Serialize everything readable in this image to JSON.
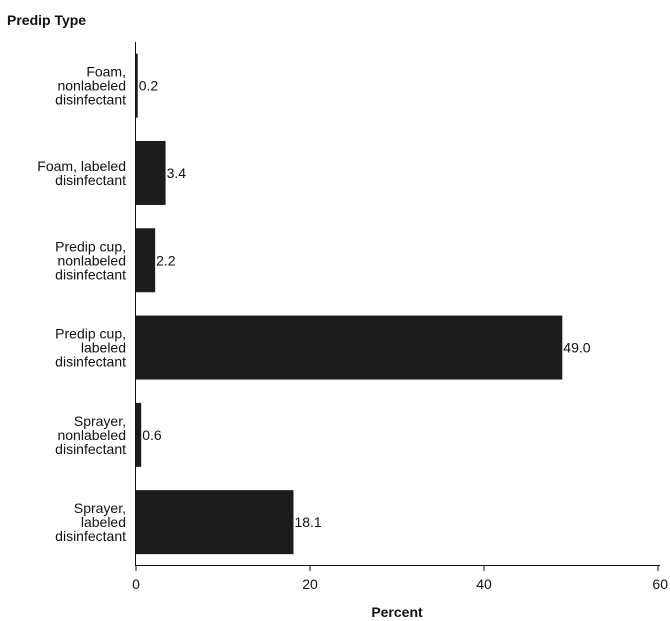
{
  "chart_data": {
    "type": "bar",
    "orientation": "horizontal",
    "ylabel": "Predip Type",
    "xlabel": "Percent",
    "categories": [
      [
        "Foam,",
        "nonlabeled",
        "disinfectant"
      ],
      [
        "Foam, labeled",
        "disinfectant"
      ],
      [
        "Predip cup,",
        "nonlabeled",
        "disinfectant"
      ],
      [
        "Predip cup,",
        "labeled",
        "disinfectant"
      ],
      [
        "Sprayer,",
        "nonlabeled",
        "disinfectant"
      ],
      [
        "Sprayer,",
        "labeled",
        "disinfectant"
      ]
    ],
    "values": [
      0.2,
      3.4,
      2.2,
      49.0,
      0.6,
      18.1
    ],
    "value_labels": [
      "0.2",
      "3.4",
      "2.2",
      "49.0",
      "0.6",
      "18.1"
    ],
    "xlim": [
      0,
      60
    ],
    "xticks": [
      0,
      20,
      40,
      60
    ],
    "bar_color": "#1c1c1c",
    "grid": false,
    "legend": "none"
  }
}
